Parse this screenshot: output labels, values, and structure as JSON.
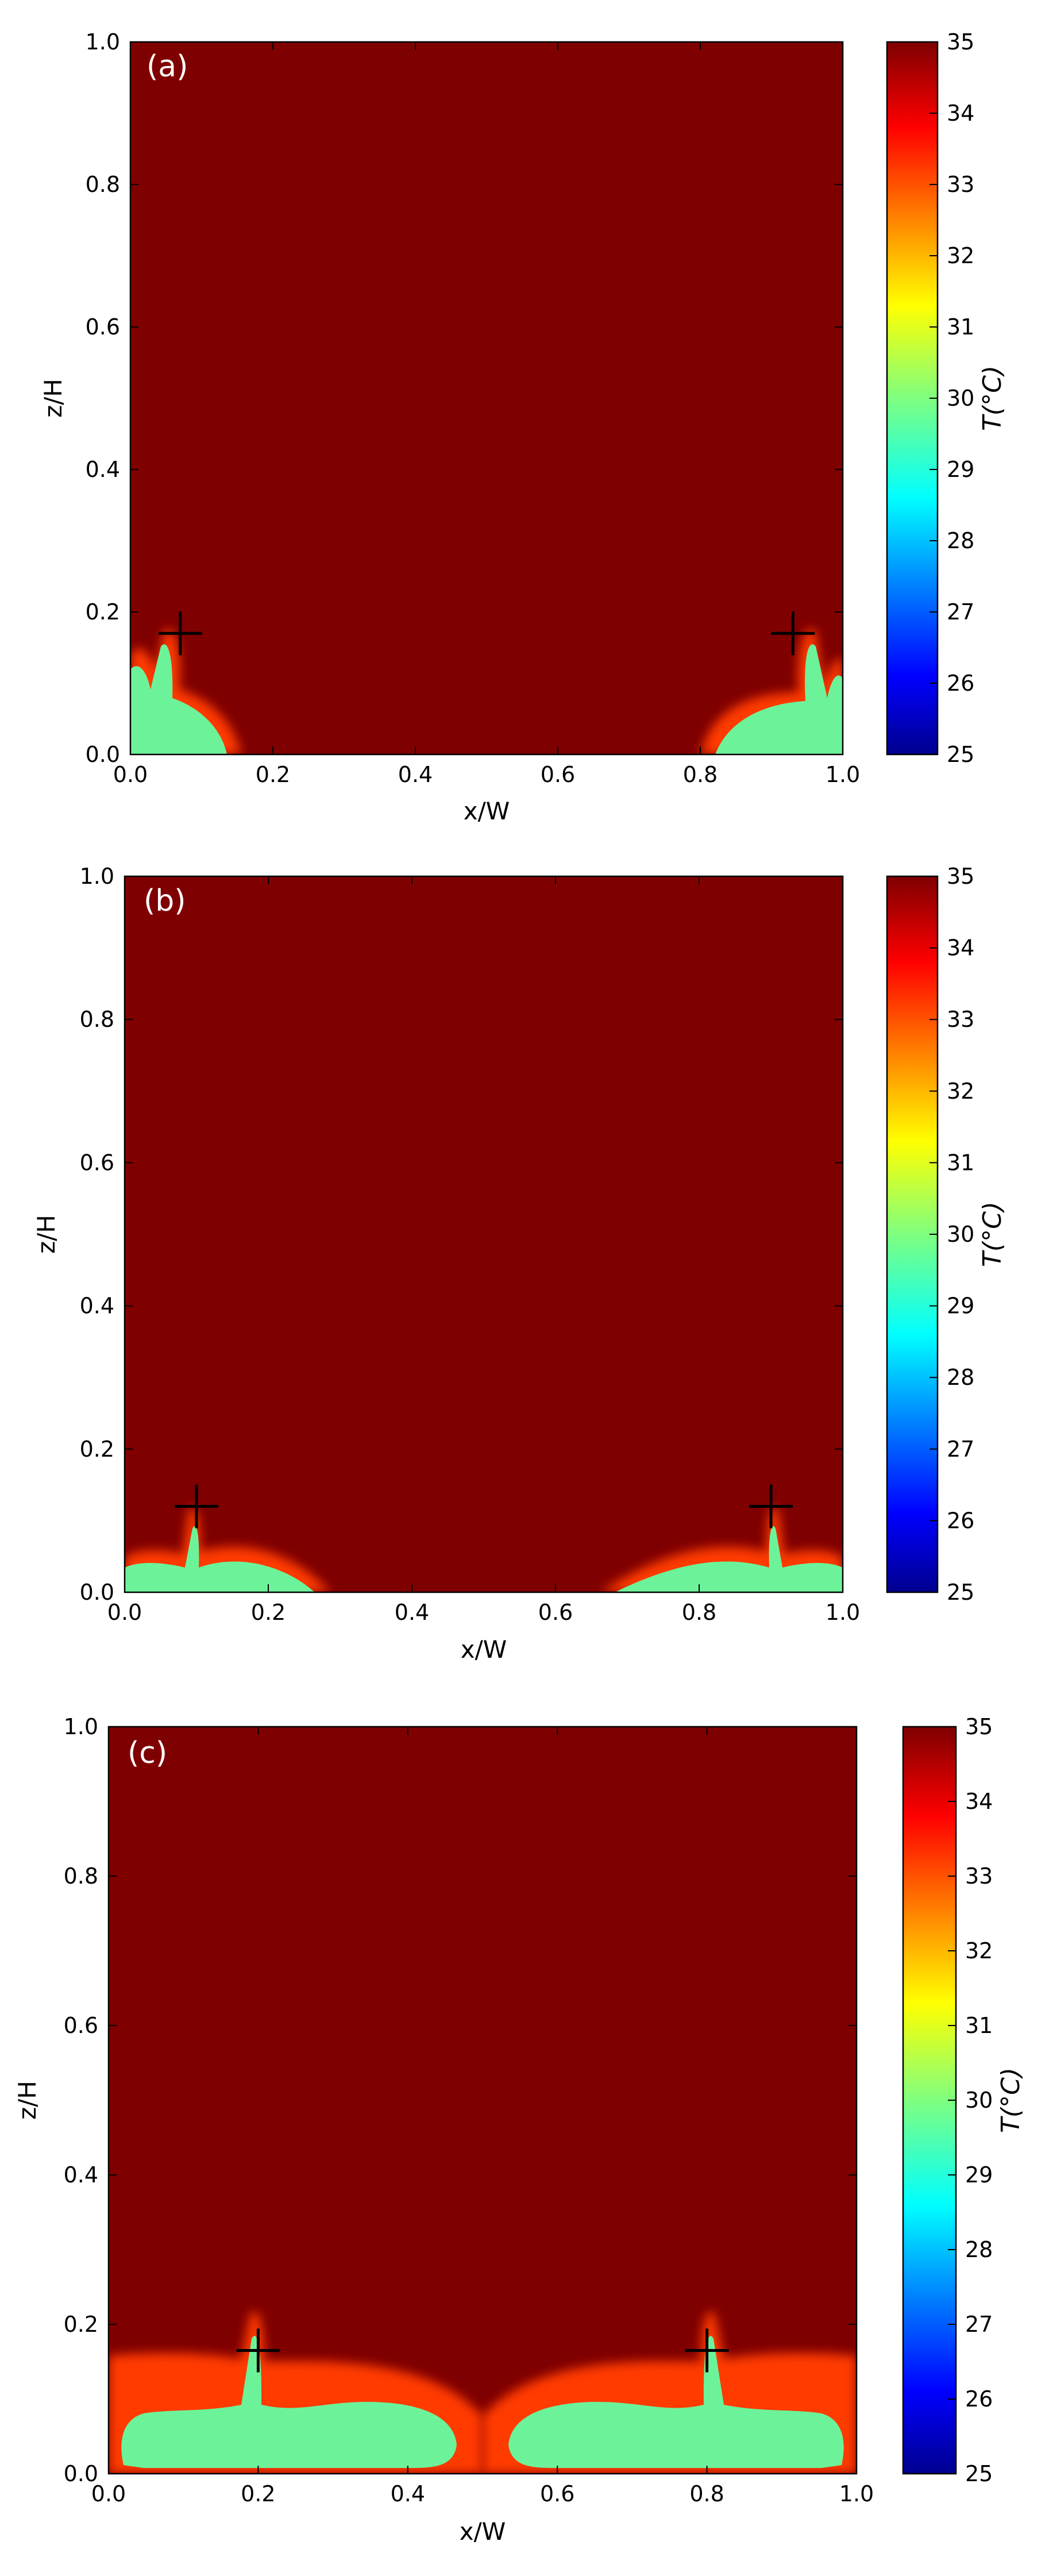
{
  "chart_data": [
    {
      "type": "heatmap",
      "panel_label": "(a)",
      "xlabel": "x/W",
      "ylabel": "z/H",
      "xlim": [
        0.0,
        1.0
      ],
      "ylim": [
        0.0,
        1.0
      ],
      "xticks": [
        "0.0",
        "0.2",
        "0.4",
        "0.6",
        "0.8",
        "1.0"
      ],
      "yticks": [
        "0.0",
        "0.2",
        "0.4",
        "0.6",
        "0.8",
        "1.0"
      ],
      "colorbar": {
        "label": "T(°C)",
        "min": 25,
        "max": 35,
        "ticks": [
          "25",
          "26",
          "27",
          "28",
          "29",
          "30",
          "31",
          "32",
          "33",
          "34",
          "35"
        ],
        "colormap": "jet"
      },
      "background_temperature": 35,
      "cold_region_temperature": 29.7,
      "markers": [
        {
          "x": 0.07,
          "y": 0.17,
          "symbol": "+"
        },
        {
          "x": 0.93,
          "y": 0.17,
          "symbol": "+"
        }
      ],
      "cold_region_extent": {
        "left_x_max": 0.15,
        "right_x_min": 0.81,
        "max_z": 0.17
      },
      "legend": "none",
      "grid": false
    },
    {
      "type": "heatmap",
      "panel_label": "(b)",
      "xlabel": "x/W",
      "ylabel": "z/H",
      "xlim": [
        0.0,
        1.0
      ],
      "ylim": [
        0.0,
        1.0
      ],
      "xticks": [
        "0.0",
        "0.2",
        "0.4",
        "0.6",
        "0.8",
        "1.0"
      ],
      "yticks": [
        "0.0",
        "0.2",
        "0.4",
        "0.6",
        "0.8",
        "1.0"
      ],
      "colorbar": {
        "label": "T(°C)",
        "min": 25,
        "max": 35,
        "ticks": [
          "25",
          "26",
          "27",
          "28",
          "29",
          "30",
          "31",
          "32",
          "33",
          "34",
          "35"
        ],
        "colormap": "jet"
      },
      "background_temperature": 35,
      "cold_region_temperature": 29.7,
      "markers": [
        {
          "x": 0.1,
          "y": 0.12,
          "symbol": "+"
        },
        {
          "x": 0.9,
          "y": 0.12,
          "symbol": "+"
        }
      ],
      "cold_region_extent": {
        "left_x_max": 0.28,
        "right_x_min": 0.68,
        "max_z": 0.12
      },
      "legend": "none",
      "grid": false
    },
    {
      "type": "heatmap",
      "panel_label": "(c)",
      "xlabel": "x/W",
      "ylabel": "z/H",
      "xlim": [
        0.0,
        1.0
      ],
      "ylim": [
        0.0,
        1.0
      ],
      "xticks": [
        "0.0",
        "0.2",
        "0.4",
        "0.6",
        "0.8",
        "1.0"
      ],
      "yticks": [
        "0.0",
        "0.2",
        "0.4",
        "0.6",
        "0.8",
        "1.0"
      ],
      "colorbar": {
        "label": "T(°C)",
        "min": 25,
        "max": 35,
        "ticks": [
          "25",
          "26",
          "27",
          "28",
          "29",
          "30",
          "31",
          "32",
          "33",
          "34",
          "35"
        ],
        "colormap": "jet"
      },
      "background_temperature": 35,
      "cold_region_temperature": 29.7,
      "markers": [
        {
          "x": 0.2,
          "y": 0.165,
          "symbol": "+"
        },
        {
          "x": 0.8,
          "y": 0.165,
          "symbol": "+"
        }
      ],
      "cold_region_extent": {
        "left_x_max": 0.47,
        "right_x_min": 0.53,
        "max_z": 0.165
      },
      "legend": "none",
      "grid": false
    }
  ]
}
